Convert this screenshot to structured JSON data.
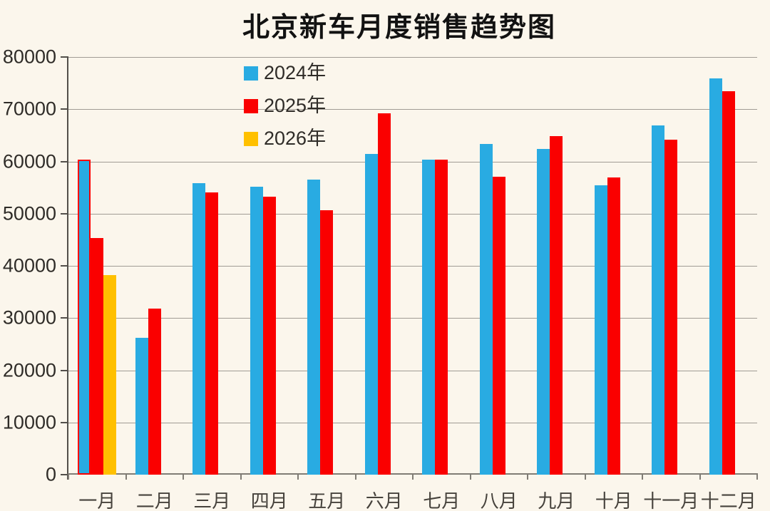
{
  "title": "北京新车月度销售趋势图",
  "colors": {
    "background": "#FBF6EC",
    "grid": "#A09C94",
    "y_axis": "#524F4A",
    "x_axis": "#807C75",
    "label_text": "#2F2C28",
    "title_text": "#121212",
    "series_2024": "#29ABE2",
    "series_2025": "#FA0000",
    "series_2026": "#FFC000",
    "highlight_outline": "#FA0000"
  },
  "legend": {
    "items": [
      {
        "label": "2024年",
        "color": "#29ABE2"
      },
      {
        "label": "2025年",
        "color": "#FA0000"
      },
      {
        "label": "2026年",
        "color": "#FFC000"
      }
    ]
  },
  "chart_data": {
    "type": "bar",
    "title": "北京新车月度销售趋势图",
    "categories": [
      "一月",
      "二月",
      "三月",
      "四月",
      "五月",
      "六月",
      "七月",
      "八月",
      "九月",
      "十月",
      "十一月",
      "十二月"
    ],
    "series": [
      {
        "name": "2024年",
        "color": "#29ABE2",
        "values": [
          60300,
          26200,
          55900,
          55100,
          56500,
          61500,
          60300,
          63300,
          62400,
          55400,
          66900,
          75900
        ]
      },
      {
        "name": "2025年",
        "color": "#FA0000",
        "values": [
          45300,
          31800,
          54000,
          53300,
          50600,
          69200,
          60300,
          57100,
          64800,
          56900,
          64100,
          73500
        ]
      },
      {
        "name": "2026年",
        "color": "#FFC000",
        "values": [
          38200,
          null,
          null,
          null,
          null,
          null,
          null,
          null,
          null,
          null,
          null,
          null
        ]
      }
    ],
    "ylim": [
      0,
      80000
    ],
    "yticks": [
      0,
      10000,
      20000,
      30000,
      40000,
      50000,
      60000,
      70000,
      80000
    ],
    "grid": true,
    "legend_position": "inside-top-left",
    "annotations": [
      {
        "category": "一月",
        "series": "2024年",
        "type": "outline",
        "color": "#FA0000"
      }
    ]
  }
}
